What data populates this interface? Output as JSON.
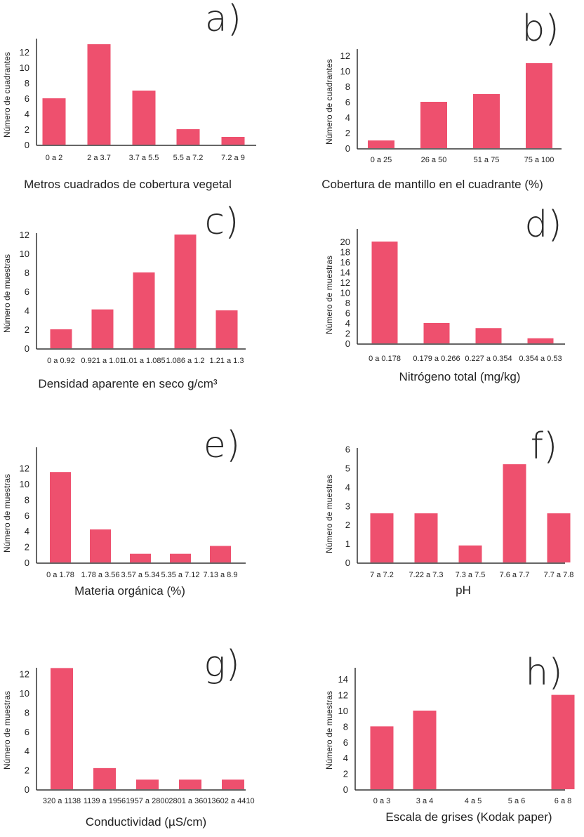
{
  "bar_color": "#EE506E",
  "chart_data": [
    {
      "panel": "a)",
      "type": "bar",
      "title": "",
      "xlabel": "Metros cuadrados de cobertura vegetal",
      "ylabel": "Número de cuadrantes",
      "categories": [
        "0 a 2",
        "2 a 3.7",
        "3.7 a 5.5",
        "5.5 a 7.2",
        "7.2 a 9"
      ],
      "values": [
        6,
        13,
        7,
        2,
        1
      ],
      "yticks": [
        0,
        2,
        4,
        6,
        8,
        10,
        12
      ],
      "ylim": [
        0,
        13
      ],
      "grid": false
    },
    {
      "panel": "b)",
      "type": "bar",
      "title": "",
      "xlabel": "Cobertura de mantillo en el cuadrante (%)",
      "ylabel": "Número de cuadrantes",
      "categories": [
        "0 a 25",
        "26 a 50",
        "51 a 75",
        "75 a 100"
      ],
      "values": [
        1,
        6,
        7,
        11
      ],
      "yticks": [
        0,
        2,
        4,
        6,
        8,
        10,
        12
      ],
      "ylim": [
        0,
        12.5
      ],
      "grid": false
    },
    {
      "panel": "c)",
      "type": "bar",
      "title": "",
      "xlabel": "Densidad aparente en seco g/cm³",
      "ylabel": "Número de muestras",
      "categories": [
        "0 a 0.92",
        "0.921 a 1.01",
        "1.01 a 1.085",
        "1.086 a 1.2",
        "1.21 a 1.3"
      ],
      "values": [
        2,
        4.1,
        8,
        12,
        4
      ],
      "yticks": [
        0,
        2,
        4,
        6,
        8,
        10,
        12
      ],
      "ylim": [
        0,
        12.2
      ],
      "grid": false
    },
    {
      "panel": "d)",
      "type": "bar",
      "title": "",
      "xlabel": "Nitrógeno total (mg/kg)",
      "ylabel": "Número de muestras",
      "categories": [
        "0 a 0.178",
        "0.179 a 0.266",
        "0.227 a 0.354",
        "0.354 a 0.53"
      ],
      "values": [
        20,
        4,
        3,
        1
      ],
      "yticks": [
        0,
        2,
        4,
        6,
        8,
        10,
        12,
        14,
        16,
        18,
        20
      ],
      "ylim": [
        0,
        22
      ],
      "grid": false
    },
    {
      "panel": "e)",
      "type": "bar",
      "title": "",
      "xlabel": "Materia orgánica (%)",
      "ylabel": "Número de muestras",
      "categories": [
        "0 a 1.78",
        "1.78 a 3.56",
        "3.57 a 5.34",
        "5.35 a 7.12",
        "7.13 a 8.9"
      ],
      "values": [
        11.5,
        4.2,
        1.1,
        1.1,
        2.1
      ],
      "yticks": [
        0,
        2,
        4,
        6,
        8,
        10,
        12
      ],
      "ylim": [
        0,
        15
      ],
      "grid": false
    },
    {
      "panel": "f)",
      "type": "bar",
      "title": "",
      "xlabel": "pH",
      "ylabel": "Número de muestras",
      "categories": [
        "7 a 7.2",
        "7.22 a 7.3",
        "7.3 a 7.5",
        "7.6 a 7.7",
        "7.7 a 7.8"
      ],
      "values": [
        2.6,
        2.6,
        0.9,
        5.2,
        2.6
      ],
      "yticks": [
        0,
        1,
        2,
        3,
        4,
        5,
        6
      ],
      "ylim": [
        0,
        6.3
      ],
      "grid": false
    },
    {
      "panel": "g)",
      "type": "bar",
      "title": "",
      "xlabel": "Conductividad (µS/cm)",
      "ylabel": "Número de muestras",
      "categories": [
        "320 a 1138",
        "1139 a 1956",
        "1957 a 2800",
        "2801 a 3601",
        "3602 a 4410"
      ],
      "values": [
        12.6,
        2.2,
        1,
        1,
        1
      ],
      "yticks": [
        0,
        2,
        4,
        6,
        8,
        10,
        12
      ],
      "ylim": [
        0,
        12.6
      ],
      "grid": false
    },
    {
      "panel": "h)",
      "type": "bar",
      "title": "",
      "xlabel": "Escala de grises (Kodak paper)",
      "ylabel": "Número de muestras",
      "categories": [
        "0 a 3",
        "3 a 4",
        "4 a 5",
        "5 a 6",
        "6 a 8"
      ],
      "values": [
        8,
        10,
        0,
        0,
        12
      ],
      "yticks": [
        0,
        2,
        4,
        6,
        8,
        10,
        12,
        14
      ],
      "ylim": [
        0,
        15
      ],
      "grid": false
    }
  ]
}
